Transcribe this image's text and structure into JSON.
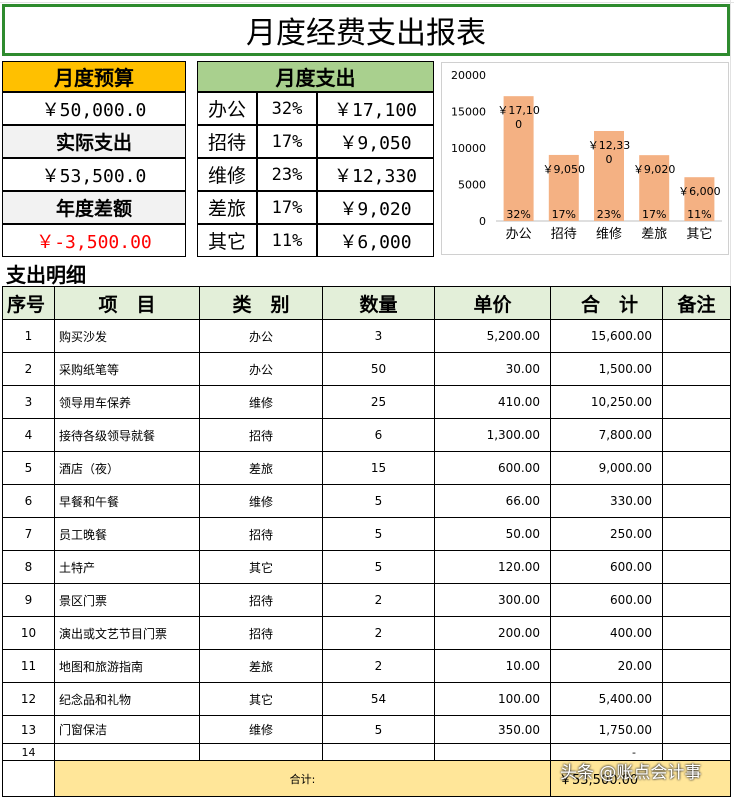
{
  "title": "月度经费支出报表",
  "budget": {
    "header": "月度预算",
    "budget_value": "￥50,000.0",
    "actual_label": "实际支出",
    "actual_value": "￥53,500.0",
    "diff_label": "年度差额",
    "diff_value": "￥-3,500.00"
  },
  "monthly": {
    "header": "月度支出",
    "rows": [
      {
        "cat": "办公",
        "pct": "32%",
        "amount": "￥17,100"
      },
      {
        "cat": "招待",
        "pct": "17%",
        "amount": "￥9,050"
      },
      {
        "cat": "维修",
        "pct": "23%",
        "amount": "￥12,330"
      },
      {
        "cat": "差旅",
        "pct": "17%",
        "amount": "￥9,020"
      },
      {
        "cat": "其它",
        "pct": "11%",
        "amount": "￥6,000"
      }
    ]
  },
  "chart_data": {
    "type": "bar",
    "categories": [
      "办公",
      "招待",
      "维修",
      "差旅",
      "其它"
    ],
    "values": [
      17100,
      9050,
      12330,
      9020,
      6000
    ],
    "value_labels": [
      "￥17,100",
      "￥9,050",
      "￥12,330",
      "￥9,020",
      "￥6,000"
    ],
    "pct_labels": [
      "32%",
      "17%",
      "23%",
      "17%",
      "11%"
    ],
    "ylim": [
      0,
      20000
    ],
    "yticks": [
      "0",
      "5000",
      "10000",
      "15000",
      "20000"
    ],
    "bar_color": "#f4b183",
    "grid": false
  },
  "detail": {
    "section_title": "支出明细",
    "headers": [
      "序号",
      "项　目",
      "类　别",
      "数量",
      "单价",
      "合　计",
      "备注"
    ],
    "rows": [
      [
        "1",
        "购买沙发",
        "办公",
        "3",
        "5,200.00",
        "15,600.00",
        ""
      ],
      [
        "2",
        "采购纸笔等",
        "办公",
        "50",
        "30.00",
        "1,500.00",
        ""
      ],
      [
        "3",
        "领导用车保养",
        "维修",
        "25",
        "410.00",
        "10,250.00",
        ""
      ],
      [
        "4",
        "接待各级领导就餐",
        "招待",
        "6",
        "1,300.00",
        "7,800.00",
        ""
      ],
      [
        "5",
        "酒店（夜）",
        "差旅",
        "15",
        "600.00",
        "9,000.00",
        ""
      ],
      [
        "6",
        "早餐和午餐",
        "维修",
        "5",
        "66.00",
        "330.00",
        ""
      ],
      [
        "7",
        "员工晚餐",
        "招待",
        "5",
        "50.00",
        "250.00",
        ""
      ],
      [
        "8",
        "土特产",
        "其它",
        "5",
        "120.00",
        "600.00",
        ""
      ],
      [
        "9",
        "景区门票",
        "招待",
        "2",
        "300.00",
        "600.00",
        ""
      ],
      [
        "10",
        "演出或文艺节目门票",
        "招待",
        "2",
        "200.00",
        "400.00",
        ""
      ],
      [
        "11",
        "地图和旅游指南",
        "差旅",
        "2",
        "10.00",
        "20.00",
        ""
      ],
      [
        "12",
        "纪念品和礼物",
        "其它",
        "54",
        "100.00",
        "5,400.00",
        ""
      ],
      [
        "13",
        "门窗保洁",
        "维修",
        "5",
        "350.00",
        "1,750.00",
        ""
      ],
      [
        "14",
        "",
        "",
        "",
        "",
        "-",
        ""
      ]
    ],
    "total_label": "合计:",
    "total_value": "￥53,500.00"
  },
  "watermark": "头条 @账点会计事",
  "colors": {
    "title_border": "#2e8b2e",
    "budget_header": "#ffc000",
    "monthly_header": "#a9d08e",
    "label_fill": "#f2f2f2",
    "negative": "#ff0000",
    "table_header": "#e3efd9",
    "total_row": "#ffe699"
  }
}
